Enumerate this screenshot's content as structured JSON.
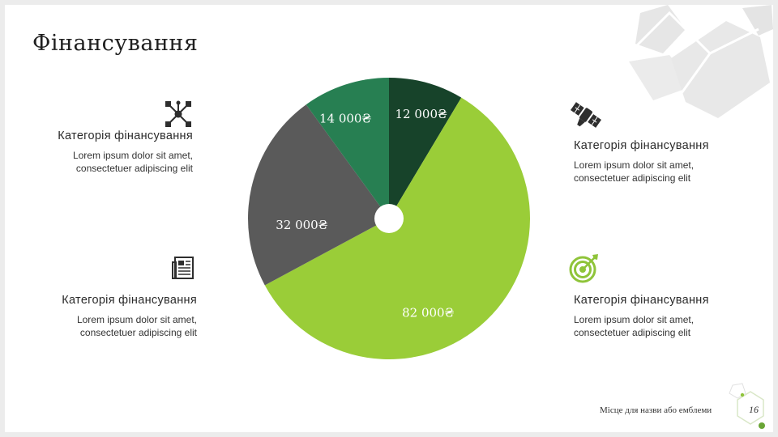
{
  "slide": {
    "title": "Фінансування",
    "footer_text": "Місце для назви або емблеми",
    "page_number": "16"
  },
  "blocks": [
    {
      "category": "Категорія фінансування",
      "body_line1": "Lorem ipsum dolor sit amet,",
      "body_line2": "consectetuer adipiscing elit",
      "icon": "network-icon"
    },
    {
      "category": "Категорія фінансування",
      "body_line1": "Lorem ipsum dolor sit amet,",
      "body_line2": "consectetuer adipiscing elit",
      "icon": "satellite-icon"
    },
    {
      "category": "Категорія фінансування",
      "body_line1": "Lorem ipsum dolor sit amet,",
      "body_line2": "consectetuer adipiscing elit",
      "icon": "newspaper-icon"
    },
    {
      "category": "Категорія фінансування",
      "body_line1": "Lorem ipsum dolor sit amet,",
      "body_line2": "consectetuer adipiscing elit",
      "icon": "target-icon"
    }
  ],
  "chart_data": {
    "type": "pie",
    "categories": [
      "12 000₴",
      "82 000₴",
      "32 000₴",
      "14 000₴"
    ],
    "values": [
      12000,
      82000,
      32000,
      14000
    ],
    "labels": [
      "12 000₴",
      "82 000₴",
      "32 000₴",
      "14 000₴"
    ],
    "colors": [
      "#17432a",
      "#9acd38",
      "#5a5a5a",
      "#277f52"
    ],
    "title": "",
    "legend": "none"
  },
  "colors": {
    "accent_dark": "#17432a",
    "accent_green": "#277f52",
    "accent_lime": "#9acd38",
    "gray": "#5a5a5a",
    "icon_color": "#2e2e2e"
  }
}
